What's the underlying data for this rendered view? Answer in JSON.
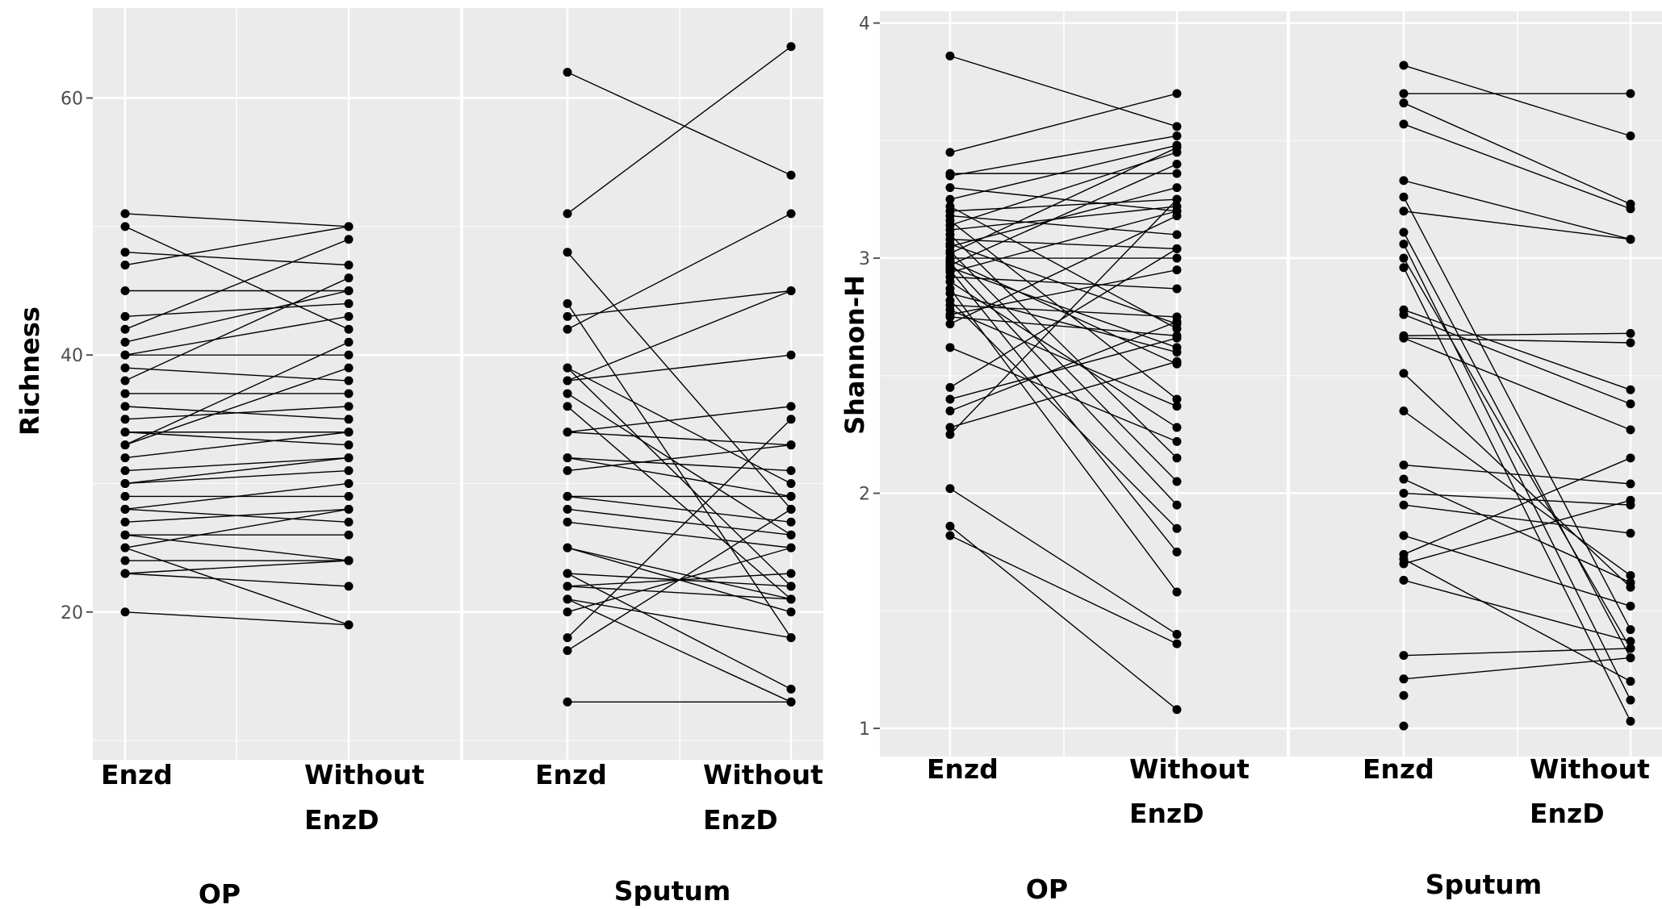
{
  "chart_data": [
    {
      "type": "line",
      "ylabel": "Richness",
      "ylim": [
        8.5,
        67
      ],
      "yticks": [
        20,
        40,
        60
      ],
      "grid": true,
      "x_labels": [
        [
          "Enzd"
        ],
        [
          "Without",
          "EnzD"
        ],
        [
          "Enzd"
        ],
        [
          "Without",
          "EnzD"
        ]
      ],
      "group_labels": [
        "OP",
        "Sputum"
      ],
      "panels": [
        {
          "group": "OP",
          "pairs": [
            [
              51,
              50
            ],
            [
              50,
              42
            ],
            [
              48,
              47
            ],
            [
              47,
              50
            ],
            [
              45,
              45
            ],
            [
              43,
              44
            ],
            [
              42,
              49
            ],
            [
              41,
              45
            ],
            [
              40,
              43
            ],
            [
              40,
              40
            ],
            [
              39,
              38
            ],
            [
              38,
              46
            ],
            [
              37,
              37
            ],
            [
              36,
              35
            ],
            [
              35,
              36
            ],
            [
              34,
              34
            ],
            [
              34,
              33
            ],
            [
              33,
              39
            ],
            [
              33,
              41
            ],
            [
              32,
              34
            ],
            [
              31,
              32
            ],
            [
              30,
              32
            ],
            [
              30,
              31
            ],
            [
              29,
              29
            ],
            [
              28,
              30
            ],
            [
              28,
              27
            ],
            [
              27,
              28
            ],
            [
              26,
              26
            ],
            [
              26,
              24
            ],
            [
              25,
              28
            ],
            [
              25,
              19
            ],
            [
              24,
              24
            ],
            [
              23,
              22
            ],
            [
              23,
              24
            ],
            [
              20,
              19
            ]
          ]
        },
        {
          "group": "Sputum",
          "pairs": [
            [
              62,
              54
            ],
            [
              51,
              64
            ],
            [
              48,
              28
            ],
            [
              44,
              18
            ],
            [
              43,
              45
            ],
            [
              42,
              51
            ],
            [
              39,
              30
            ],
            [
              39,
              22
            ],
            [
              38,
              45
            ],
            [
              38,
              40
            ],
            [
              37,
              26
            ],
            [
              36,
              21
            ],
            [
              34,
              36
            ],
            [
              34,
              33
            ],
            [
              32,
              31
            ],
            [
              32,
              29
            ],
            [
              31,
              33
            ],
            [
              29,
              29
            ],
            [
              29,
              27
            ],
            [
              28,
              26
            ],
            [
              27,
              25
            ],
            [
              25,
              21
            ],
            [
              25,
              20
            ],
            [
              23,
              14
            ],
            [
              23,
              22
            ],
            [
              22,
              21
            ],
            [
              22,
              23
            ],
            [
              21,
              13
            ],
            [
              21,
              18
            ],
            [
              20,
              25
            ],
            [
              18,
              35
            ],
            [
              17,
              28
            ],
            [
              13,
              13
            ]
          ]
        }
      ]
    },
    {
      "type": "line",
      "ylabel": "Shannon-H",
      "ylim": [
        0.88,
        4.05
      ],
      "yticks": [
        1,
        2,
        3,
        4
      ],
      "grid": true,
      "x_labels": [
        [
          "Enzd"
        ],
        [
          "Without",
          "EnzD"
        ],
        [
          "Enzd"
        ],
        [
          "Without",
          "EnzD"
        ]
      ],
      "group_labels": [
        "OP",
        "Sputum"
      ],
      "panels": [
        {
          "group": "OP",
          "pairs": [
            [
              3.86,
              3.56
            ],
            [
              3.45,
              3.7
            ],
            [
              3.36,
              3.36
            ],
            [
              3.35,
              3.52
            ],
            [
              3.3,
              3.2
            ],
            [
              3.25,
              3.48
            ],
            [
              3.22,
              2.7
            ],
            [
              3.2,
              3.25
            ],
            [
              3.18,
              3.1
            ],
            [
              3.16,
              2.4
            ],
            [
              3.14,
              3.45
            ],
            [
              3.12,
              3.22
            ],
            [
              3.1,
              2.15
            ],
            [
              3.08,
              3.04
            ],
            [
              3.06,
              2.72
            ],
            [
              3.05,
              3.3
            ],
            [
              3.03,
              2.05
            ],
            [
              3.02,
              3.47
            ],
            [
              3.0,
              3.0
            ],
            [
              2.99,
              2.55
            ],
            [
              2.98,
              1.95
            ],
            [
              2.97,
              3.4
            ],
            [
              2.96,
              2.62
            ],
            [
              2.95,
              1.75
            ],
            [
              2.94,
              3.2
            ],
            [
              2.92,
              2.87
            ],
            [
              2.9,
              2.28
            ],
            [
              2.87,
              1.58
            ],
            [
              2.85,
              2.6
            ],
            [
              2.82,
              1.85
            ],
            [
              2.8,
              2.75
            ],
            [
              2.78,
              2.37
            ],
            [
              2.76,
              2.95
            ],
            [
              2.75,
              2.67
            ],
            [
              2.72,
              3.18
            ],
            [
              2.62,
              2.22
            ],
            [
              2.45,
              3.04
            ],
            [
              2.4,
              2.66
            ],
            [
              2.35,
              2.73
            ],
            [
              2.28,
              2.56
            ],
            [
              2.25,
              3.25
            ],
            [
              2.02,
              1.4
            ],
            [
              1.86,
              1.08
            ],
            [
              1.82,
              1.36
            ]
          ]
        },
        {
          "group": "Sputum",
          "pairs": [
            [
              3.82,
              3.52
            ],
            [
              3.7,
              3.7
            ],
            [
              3.66,
              3.23
            ],
            [
              3.57,
              3.21
            ],
            [
              3.33,
              3.08
            ],
            [
              3.26,
              1.42
            ],
            [
              3.2,
              3.08
            ],
            [
              3.11,
              1.3
            ],
            [
              3.06,
              1.12
            ],
            [
              3.0,
              1.34
            ],
            [
              2.96,
              1.03
            ],
            [
              2.78,
              2.44
            ],
            [
              2.76,
              2.38
            ],
            [
              2.67,
              2.68
            ],
            [
              2.66,
              2.27
            ],
            [
              2.66,
              2.64
            ],
            [
              2.51,
              1.6
            ],
            [
              2.35,
              1.65
            ],
            [
              2.12,
              2.04
            ],
            [
              2.06,
              1.62
            ],
            [
              2.0,
              1.95
            ],
            [
              1.95,
              1.83
            ],
            [
              1.82,
              1.52
            ],
            [
              1.74,
              2.15
            ],
            [
              1.72,
              1.2
            ],
            [
              1.7,
              1.97
            ],
            [
              1.63,
              1.37
            ],
            [
              1.31,
              1.34
            ],
            [
              1.21,
              1.3
            ]
          ],
          "singles": [
            1.14,
            1.01
          ]
        }
      ]
    }
  ]
}
